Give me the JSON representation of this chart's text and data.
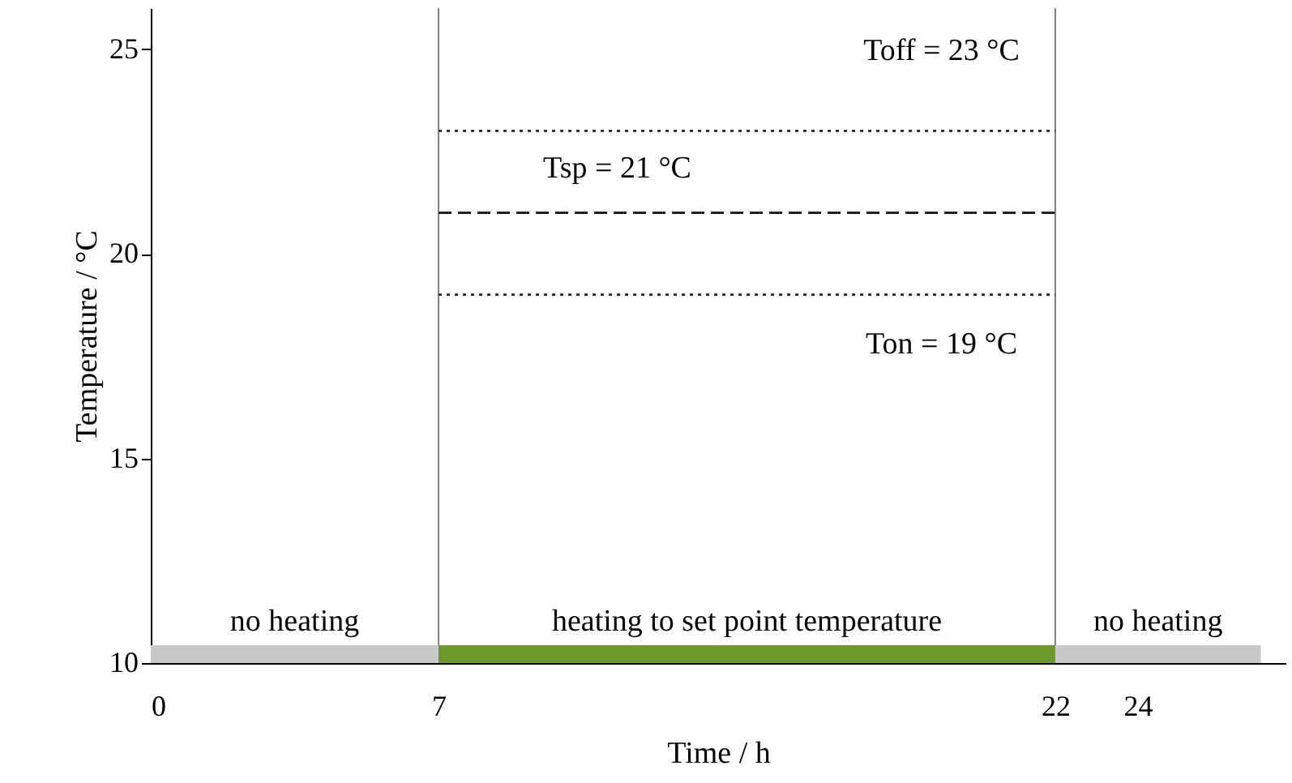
{
  "chart_data": {
    "type": "line",
    "xlabel": "Time / h",
    "ylabel": "Temperature / °C",
    "xlim": [
      0,
      27.6
    ],
    "ylim": [
      10,
      26
    ],
    "xticks": [
      0,
      7,
      22,
      24
    ],
    "yticks": [
      10,
      15,
      20,
      25
    ],
    "grid": false,
    "ref_lines": [
      {
        "axis": "x",
        "value": 7,
        "color": "#808080",
        "line_style": "solid"
      },
      {
        "axis": "x",
        "value": 22,
        "color": "#808080",
        "line_style": "solid"
      },
      {
        "axis": "y",
        "value": 23,
        "label": "Toff = 23 °C",
        "color": "#333333",
        "line_style": "dotted"
      },
      {
        "axis": "y",
        "value": 21,
        "label": "Tsp = 21 °C",
        "color": "#222222",
        "line_style": "dashed"
      },
      {
        "axis": "y",
        "value": 19,
        "label": "Ton = 19 °C",
        "color": "#333333",
        "line_style": "dotted"
      }
    ],
    "bands": [
      {
        "axis": "x",
        "from": 0,
        "to": 7,
        "label": "no heating",
        "color": "#c8c8c8"
      },
      {
        "axis": "x",
        "from": 7,
        "to": 22,
        "label": "heating to set point temperature",
        "color": "#6b9a2a"
      },
      {
        "axis": "x",
        "from": 22,
        "to": 27,
        "label": "no heating",
        "color": "#c8c8c8"
      }
    ]
  }
}
